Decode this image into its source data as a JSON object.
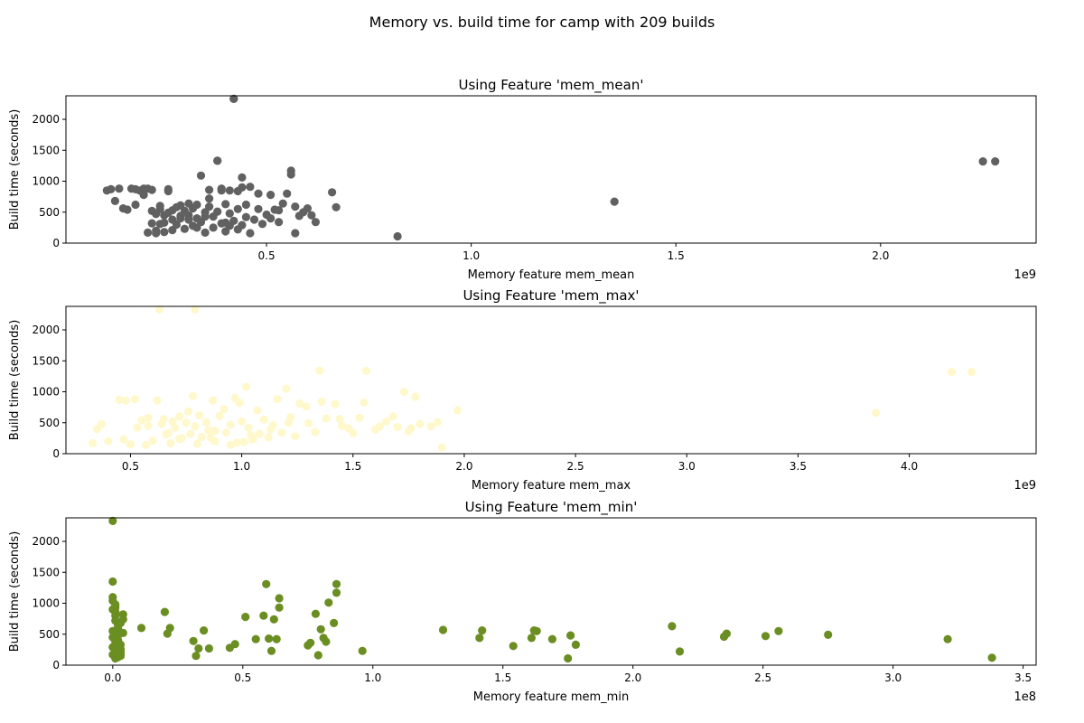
{
  "figure": {
    "suptitle": "Memory vs. build time for camp with 209 builds"
  },
  "chart_data": [
    {
      "type": "scatter",
      "title": "Using Feature 'mem_mean'",
      "xlabel": "Memory feature mem_mean",
      "ylabel": "Build time (seconds)",
      "x_offset_label": "1e9",
      "xlim": [
        0.01,
        2.38
      ],
      "ylim": [
        0,
        2380
      ],
      "xticks": [
        0.5,
        1.0,
        1.5,
        2.0
      ],
      "xtick_labels": [
        "0.5",
        "1.0",
        "1.5",
        "2.0"
      ],
      "yticks": [
        0,
        500,
        1000,
        1500,
        2000
      ],
      "ytick_labels": [
        "0",
        "500",
        "1000",
        "1500",
        "2000"
      ],
      "color": "#616161",
      "series": [
        {
          "x": [
            0.11,
            0.12,
            0.13,
            0.15,
            0.16,
            0.17,
            0.18,
            0.19,
            0.2,
            0.2,
            0.21,
            0.22,
            0.22,
            0.23,
            0.23,
            0.24,
            0.24,
            0.25,
            0.25,
            0.26,
            0.26,
            0.27,
            0.27,
            0.28,
            0.28,
            0.29,
            0.29,
            0.3,
            0.3,
            0.31,
            0.31,
            0.32,
            0.32,
            0.33,
            0.33,
            0.34,
            0.34,
            0.35,
            0.35,
            0.36,
            0.36,
            0.37,
            0.37,
            0.38,
            0.38,
            0.39,
            0.39,
            0.4,
            0.4,
            0.41,
            0.41,
            0.42,
            0.42,
            0.43,
            0.43,
            0.44,
            0.44,
            0.45,
            0.45,
            0.46,
            0.47,
            0.48,
            0.49,
            0.5,
            0.51,
            0.52,
            0.53,
            0.54,
            0.55,
            0.56,
            0.57,
            0.58,
            0.59,
            0.6,
            0.61,
            0.62,
            0.66,
            0.67,
            0.82,
            1.35,
            2.25,
            2.28,
            0.42,
            0.43,
            0.38,
            0.39,
            0.56,
            0.57,
            0.53,
            0.35,
            0.27,
            0.24,
            0.14,
            0.18,
            0.21,
            0.26,
            0.31,
            0.36,
            0.41,
            0.46,
            0.51,
            0.48,
            0.44,
            0.4,
            0.33,
            0.29,
            0.25,
            0.23,
            0.22
          ],
          "y": [
            850,
            870,
            680,
            560,
            540,
            880,
            870,
            850,
            880,
            780,
            880,
            860,
            320,
            470,
            160,
            550,
            600,
            330,
            450,
            490,
            870,
            380,
            530,
            300,
            580,
            400,
            610,
            520,
            230,
            450,
            640,
            280,
            560,
            400,
            620,
            340,
            1090,
            500,
            170,
            590,
            860,
            250,
            430,
            1330,
            510,
            320,
            880,
            630,
            190,
            480,
            850,
            2330,
            360,
            840,
            550,
            1060,
            290,
            420,
            620,
            160,
            380,
            800,
            310,
            460,
            780,
            540,
            530,
            640,
            800,
            1170,
            590,
            440,
            500,
            560,
            450,
            340,
            820,
            580,
            110,
            670,
            1320,
            1320,
            2330,
            220,
            1330,
            850,
            1110,
            160,
            340,
            430,
            210,
            310,
            880,
            620,
            170,
            840,
            380,
            720,
            280,
            910,
            400,
            550,
            900,
            330,
            250,
            440,
            180,
            200,
            520
          ]
        }
      ]
    },
    {
      "type": "scatter",
      "title": "Using Feature 'mem_max'",
      "xlabel": "Memory feature mem_max",
      "ylabel": "Build time (seconds)",
      "x_offset_label": "1e9",
      "xlim": [
        0.21,
        4.57
      ],
      "ylim": [
        0,
        2380
      ],
      "xticks": [
        0.5,
        1.0,
        1.5,
        2.0,
        2.5,
        3.0,
        3.5,
        4.0
      ],
      "xtick_labels": [
        "0.5",
        "1.0",
        "1.5",
        "2.0",
        "2.5",
        "3.0",
        "3.5",
        "4.0"
      ],
      "yticks": [
        0,
        500,
        1000,
        1500,
        2000
      ],
      "ytick_labels": [
        "0",
        "500",
        "1000",
        "1500",
        "2000"
      ],
      "color": "#fff8cc",
      "series": [
        {
          "x": [
            0.33,
            0.35,
            0.37,
            0.4,
            0.45,
            0.48,
            0.5,
            0.52,
            0.55,
            0.57,
            0.58,
            0.6,
            0.62,
            0.64,
            0.65,
            0.67,
            0.68,
            0.7,
            0.72,
            0.73,
            0.75,
            0.77,
            0.78,
            0.79,
            0.8,
            0.82,
            0.84,
            0.85,
            0.87,
            0.88,
            0.9,
            0.92,
            0.93,
            0.95,
            0.97,
            0.98,
            1.0,
            1.02,
            1.03,
            1.05,
            1.07,
            1.08,
            1.1,
            1.12,
            1.14,
            1.16,
            1.18,
            1.2,
            1.22,
            1.24,
            1.26,
            1.3,
            1.33,
            1.35,
            1.38,
            1.42,
            1.45,
            1.48,
            1.5,
            1.53,
            1.55,
            1.6,
            1.65,
            1.68,
            1.7,
            1.73,
            1.75,
            1.78,
            1.8,
            1.85,
            1.88,
            1.9,
            1.97,
            3.85,
            4.19,
            4.28,
            0.63,
            0.79,
            1.36,
            1.56,
            0.47,
            0.53,
            0.66,
            0.81,
            0.95,
            1.13,
            1.29,
            0.72,
            0.88,
            1.04,
            0.58,
            0.76,
            0.99,
            1.21,
            1.44,
            1.62,
            1.76,
            0.86,
            1.01,
            0.69
          ],
          "y": [
            170,
            400,
            480,
            200,
            870,
            860,
            150,
            880,
            540,
            140,
            580,
            210,
            860,
            480,
            560,
            330,
            170,
            420,
            600,
            250,
            500,
            320,
            930,
            440,
            160,
            270,
            510,
            380,
            860,
            200,
            610,
            720,
            340,
            470,
            900,
            180,
            520,
            1080,
            420,
            230,
            700,
            320,
            550,
            260,
            460,
            880,
            340,
            1050,
            590,
            280,
            810,
            490,
            350,
            1340,
            570,
            800,
            450,
            410,
            330,
            580,
            830,
            390,
            520,
            600,
            430,
            1000,
            360,
            920,
            480,
            440,
            510,
            100,
            700,
            660,
            1320,
            1320,
            2330,
            2330,
            840,
            1340,
            230,
            420,
            310,
            620,
            140,
            390,
            760,
            240,
            370,
            300,
            450,
            680,
            820,
            500,
            560,
            440,
            410,
            260,
            190,
            520
          ]
        }
      ]
    },
    {
      "type": "scatter",
      "title": "Using Feature 'mem_min'",
      "xlabel": "Memory feature mem_min",
      "ylabel": "Build time (seconds)",
      "x_offset_label": "1e8",
      "xlim": [
        -0.18,
        3.55
      ],
      "ylim": [
        0,
        2380
      ],
      "xticks": [
        0.0,
        0.5,
        1.0,
        1.5,
        2.0,
        2.5,
        3.0,
        3.5
      ],
      "xtick_labels": [
        "0.0",
        "0.5",
        "1.0",
        "1.5",
        "2.0",
        "2.5",
        "3.0",
        "3.5"
      ],
      "yticks": [
        0,
        500,
        1000,
        1500,
        2000
      ],
      "ytick_labels": [
        "0",
        "500",
        "1000",
        "1500",
        "2000"
      ],
      "color": "#6b8e23",
      "series": [
        {
          "x": [
            0.0,
            0.0,
            0.0,
            0.0,
            0.01,
            0.01,
            0.01,
            0.01,
            0.02,
            0.02,
            0.02,
            0.02,
            0.03,
            0.03,
            0.03,
            0.03,
            0.04,
            0.04,
            0.0,
            0.01,
            0.02,
            0.03,
            0.0,
            0.01,
            0.02,
            0.03,
            0.04,
            0.0,
            0.01,
            0.02,
            0.11,
            0.2,
            0.21,
            0.22,
            0.31,
            0.32,
            0.33,
            0.35,
            0.37,
            0.45,
            0.47,
            0.51,
            0.55,
            0.58,
            0.59,
            0.6,
            0.61,
            0.62,
            0.63,
            0.64,
            0.64,
            0.75,
            0.76,
            0.78,
            0.79,
            0.8,
            0.81,
            0.82,
            0.83,
            0.85,
            0.86,
            0.86,
            0.96,
            1.27,
            1.41,
            1.42,
            1.54,
            1.61,
            1.62,
            1.63,
            1.69,
            1.75,
            1.76,
            1.78,
            2.15,
            2.18,
            2.35,
            2.36,
            2.51,
            2.56,
            2.75,
            3.21,
            3.38,
            0.0,
            0.01,
            0.02,
            0.0,
            0.01,
            0.03,
            0.02
          ],
          "y": [
            2330,
            1350,
            1100,
            1040,
            930,
            860,
            800,
            720,
            640,
            560,
            480,
            400,
            330,
            260,
            200,
            150,
            820,
            520,
            450,
            380,
            310,
            240,
            170,
            110,
            600,
            680,
            740,
            900,
            980,
            560,
            600,
            860,
            510,
            600,
            390,
            150,
            270,
            560,
            270,
            280,
            340,
            780,
            420,
            800,
            1310,
            430,
            230,
            740,
            420,
            1080,
            930,
            320,
            360,
            830,
            160,
            580,
            440,
            380,
            1010,
            680,
            1170,
            1310,
            230,
            570,
            440,
            560,
            310,
            440,
            560,
            550,
            420,
            110,
            480,
            330,
            630,
            220,
            460,
            510,
            470,
            550,
            490,
            420,
            120,
            550,
            460,
            350,
            290,
            220,
            190,
            130
          ]
        }
      ]
    }
  ]
}
